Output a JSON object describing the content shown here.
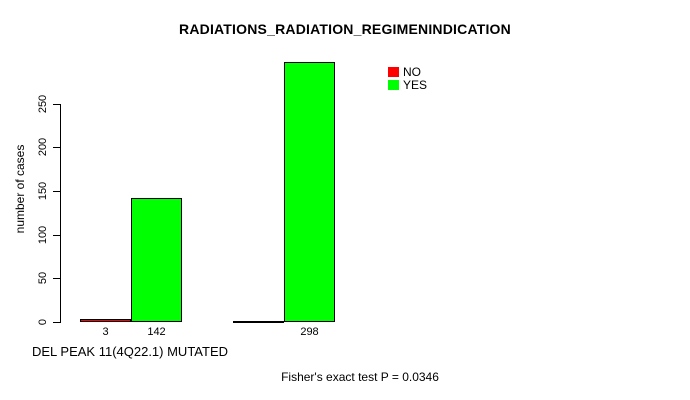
{
  "chart_data": {
    "type": "bar",
    "title": "RADIATIONS_RADIATION_REGIMENINDICATION",
    "ylabel": "number of cases",
    "xlabel": "DEL PEAK 11(4Q22.1) MUTATED",
    "annotation": "Fisher's exact test P = 0.0346",
    "ylim": [
      0,
      250
    ],
    "yticks": [
      0,
      50,
      100,
      150,
      200,
      250
    ],
    "grid": false,
    "legend_position": "top-right",
    "n_groups": 2,
    "series": [
      {
        "name": "NO",
        "color": "#ff0000",
        "values": [
          3,
          0
        ],
        "labels": [
          "3",
          ""
        ]
      },
      {
        "name": "YES",
        "color": "#00ff00",
        "values": [
          142,
          298
        ],
        "labels": [
          "142",
          "298"
        ]
      }
    ],
    "legend": [
      {
        "label": "NO",
        "color": "#ff0000"
      },
      {
        "label": "YES",
        "color": "#00ff00"
      }
    ]
  }
}
